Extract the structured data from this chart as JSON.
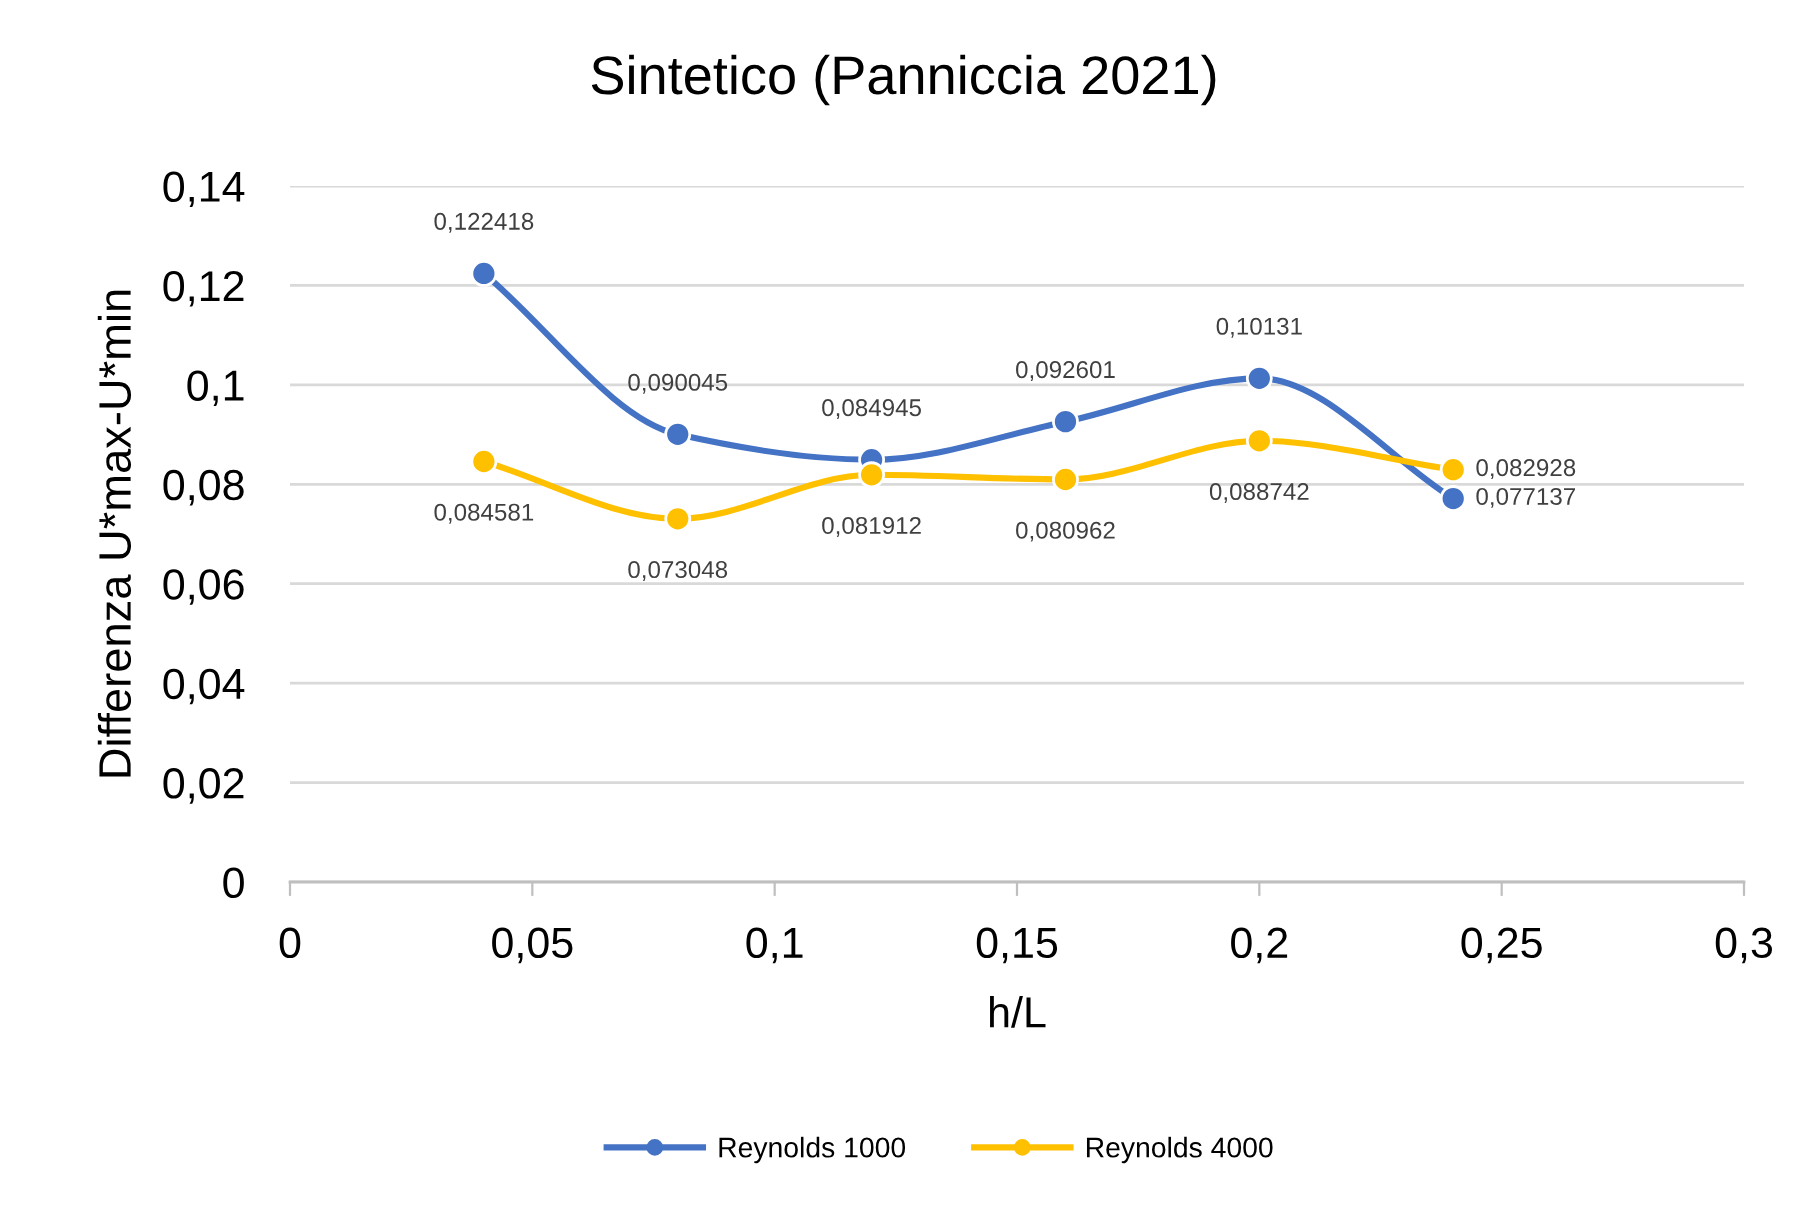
{
  "chart_data": {
    "type": "line",
    "title": "Sintetico (Panniccia 2021)",
    "xlabel": "h/L",
    "ylabel": "Differenza U*max-U*min",
    "x": [
      0.04,
      0.08,
      0.12,
      0.16,
      0.2,
      0.24
    ],
    "series": [
      {
        "name": "Reynolds 1000",
        "color": "#4472c4",
        "values": [
          0.122418,
          0.090045,
          0.084945,
          0.092601,
          0.10131,
          0.077137
        ],
        "value_labels": [
          "0,122418",
          "0,090045",
          "0,084945",
          "0,092601",
          "0,10131",
          "0,077137"
        ]
      },
      {
        "name": "Reynolds 4000",
        "color": "#ffc000",
        "values": [
          0.084581,
          0.073048,
          0.081912,
          0.080962,
          0.088742,
          0.082928
        ],
        "value_labels": [
          "0,084581",
          "0,073048",
          "0,081912",
          "0,080962",
          "0,088742",
          "0,082928"
        ]
      }
    ],
    "xlim": [
      0,
      0.3
    ],
    "xticks": [
      0,
      {
        "value": 0.05,
        "label": "0,05"
      },
      {
        "value": 0.1,
        "label": "0,1"
      },
      {
        "value": 0.15,
        "label": "0,15"
      },
      {
        "value": 0.2,
        "label": "0,2"
      },
      {
        "value": 0.25,
        "label": "0,25"
      },
      {
        "value": 0.3,
        "label": "0,3"
      }
    ],
    "ylim": [
      0,
      0.14
    ],
    "yticks": [
      0,
      {
        "value": 0.02,
        "label": "0,02"
      },
      {
        "value": 0.04,
        "label": "0,04"
      },
      {
        "value": 0.06,
        "label": "0,06"
      },
      {
        "value": 0.08,
        "label": "0,08"
      },
      {
        "value": 0.1,
        "label": "0,1"
      },
      {
        "value": 0.12,
        "label": "0,12"
      },
      {
        "value": 0.14,
        "label": "0,14"
      }
    ],
    "grid": "y",
    "legend": "bottom",
    "marker": "circle",
    "line_style": "solid"
  }
}
